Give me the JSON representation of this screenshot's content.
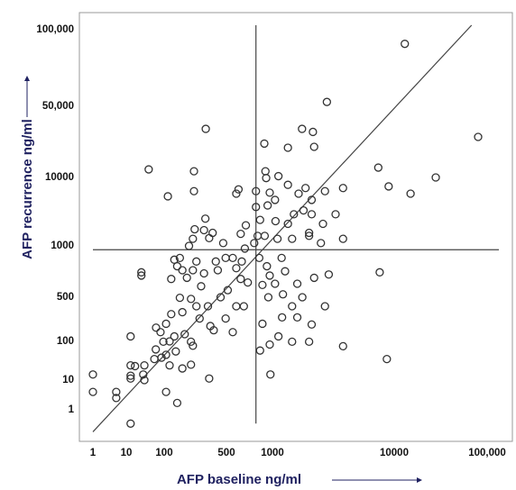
{
  "chart_data": {
    "type": "scatter",
    "x_label": "AFP baseline ng/ml",
    "y_label": "AFP recurrence ng/ml",
    "log_scale": true,
    "xlim": [
      0.7,
      200000
    ],
    "ylim": [
      0.6,
      200000
    ],
    "xticks": [
      1,
      10,
      100,
      500,
      1000,
      10000,
      {
        "value": 100000,
        "label": "100,000"
      }
    ],
    "yticks": [
      1,
      10,
      100,
      500,
      1000,
      10000,
      {
        "value": 50000,
        "label": "50,000"
      },
      {
        "value": 100000,
        "label": "100,000"
      }
    ],
    "color": "#333333",
    "x": [
      1,
      1,
      5,
      5,
      13,
      13,
      13,
      13,
      25,
      25,
      39,
      293,
      110,
      216,
      216,
      13000,
      80000,
      7400,
      9000,
      15000,
      28000,
      7600,
      8700,
      3800,
      2800,
      2700,
      3800,
      2150,
      2200,
      1750,
      1340,
      885,
      900,
      910,
      960,
      780,
      1060,
      1100,
      760,
      660,
      630,
      580,
      550,
      690,
      620,
      650,
      580,
      490,
      550,
      330,
      360,
      310,
      400,
      430,
      510,
      260,
      280,
      230,
      210,
      180,
      140,
      150,
      200,
      230,
      250,
      160,
      120,
      105,
      61,
      80,
      95,
      115,
      130,
      170,
      200,
      210,
      135,
      105,
      85,
      60,
      55,
      30,
      28,
      30,
      13,
      17,
      105,
      140,
      320,
      200,
      160,
      115,
      290,
      280,
      320,
      350,
      190,
      210,
      130,
      160,
      120,
      150,
      220,
      460,
      490,
      380,
      620,
      670,
      580,
      600,
      930,
      1050,
      830,
      890,
      800,
      820,
      920,
      960,
      860,
      940,
      1050,
      1190,
      1270,
      1220,
      1600,
      1760,
      1450,
      1200,
      1600,
      1120,
      960,
      860,
      830,
      970,
      1450,
      2000,
      2100,
      2700,
      2900,
      2200,
      2500,
      2000,
      1450,
      1340,
      1500,
      1800,
      2100,
      2100,
      1870,
      1640,
      1340,
      1120,
      780,
      2000,
      2600,
      3300,
      3800
    ],
    "values": [
      14,
      4,
      2.5,
      4,
      0.8,
      13,
      24,
      120,
      670,
      700,
      12000,
      30000,
      5300,
      11500,
      6300,
      88000,
      25000,
      12500,
      7400,
      5800,
      10000,
      700,
      35,
      75,
      52000,
      6300,
      7000,
      28000,
      20000,
      30000,
      19600,
      21500,
      11500,
      9800,
      6000,
      3700,
      2300,
      1270,
      1100,
      965,
      810,
      740,
      850,
      610,
      640,
      360,
      360,
      230,
      140,
      175,
      150,
      360,
      720,
      500,
      550,
      580,
      690,
      810,
      720,
      650,
      760,
      490,
      470,
      360,
      230,
      290,
      270,
      190,
      165,
      140,
      98,
      100,
      120,
      130,
      98,
      77,
      55,
      45,
      38,
      62,
      35,
      24,
      14,
      10,
      11,
      23,
      4,
      1.7,
      11,
      25,
      20,
      24,
      2500,
      1700,
      1300,
      1550,
      1000,
      1270,
      830,
      720,
      640,
      850,
      1750,
      1100,
      850,
      810,
      1500,
      2000,
      5800,
      6700,
      3900,
      4700,
      2400,
      1400,
      1400,
      850,
      760,
      670,
      590,
      500,
      600,
      850,
      710,
      520,
      600,
      500,
      360,
      240,
      240,
      120,
      83,
      190,
      58,
      14,
      98,
      98,
      185,
      360,
      680,
      650,
      1100,
      1400,
      1270,
      2100,
      2900,
      3300,
      2900,
      4700,
      7000,
      5800,
      7800,
      10300,
      6300,
      1550,
      2100,
      2900,
      1270
    ],
    "lines": [
      {
        "x": [
          1,
          68000
        ],
        "y": [
          0.7,
          120000
        ]
      },
      {
        "x": [
          780,
          780
        ],
        "y": [
          0.8,
          120000
        ]
      },
      {
        "x": [
          1,
          138000
        ],
        "y": [
          950,
          950
        ]
      }
    ]
  }
}
